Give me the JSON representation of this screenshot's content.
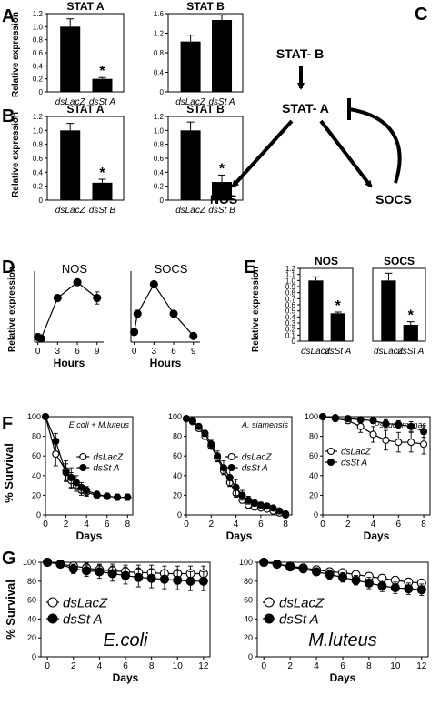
{
  "panel_letters": [
    "A",
    "B",
    "C",
    "D",
    "E",
    "F",
    "G"
  ],
  "asterisk": "*",
  "diagram_c": {
    "nodes": [
      "STAT- B",
      "STAT- A",
      "NOS",
      "SOCS"
    ]
  },
  "chart_data": [
    {
      "panel": "A",
      "type": "bar",
      "title": "STAT A",
      "ylabel": "Relative expression",
      "categories": [
        "dsLacZ",
        "dsSt A"
      ],
      "values": [
        1.0,
        0.2
      ],
      "errors": [
        0.12,
        0.02
      ],
      "significant": [
        false,
        true
      ],
      "ylim": [
        0,
        1.2
      ],
      "yticks": [
        "0",
        "0.2",
        "0.4",
        "0.6",
        "0.8",
        "1.0",
        "1.2"
      ]
    },
    {
      "panel": "A",
      "type": "bar",
      "title": "STAT B",
      "ylabel": "",
      "categories": [
        "dsLacZ",
        "dsSt A"
      ],
      "values": [
        1.03,
        1.47
      ],
      "errors": [
        0.13,
        0.1
      ],
      "significant": [
        false,
        false
      ],
      "ylim": [
        0,
        1.6
      ],
      "yticks": [
        "0",
        "0.4",
        "0.8",
        "1.2",
        "1.6"
      ]
    },
    {
      "panel": "B",
      "type": "bar",
      "title": "STAT A",
      "ylabel": "Relative expression",
      "categories": [
        "dsLacZ",
        "dsSt B"
      ],
      "values": [
        1.0,
        0.25
      ],
      "errors": [
        0.1,
        0.05
      ],
      "significant": [
        false,
        true
      ],
      "ylim": [
        0,
        1.2
      ],
      "yticks": [
        "0",
        "0.2",
        "0.4",
        "0.6",
        "0.8",
        "1.0",
        "1.2"
      ]
    },
    {
      "panel": "B",
      "type": "bar",
      "title": "STAT B",
      "ylabel": "",
      "categories": [
        "dsLacZ",
        "dsSt B"
      ],
      "values": [
        1.0,
        0.26
      ],
      "errors": [
        0.12,
        0.1
      ],
      "significant": [
        false,
        true
      ],
      "ylim": [
        0,
        1.2
      ],
      "yticks": [
        "0",
        "0.2",
        "0.4",
        "0.6",
        "0.8",
        "1.0",
        "1.2"
      ]
    },
    {
      "panel": "D",
      "type": "line",
      "title": "NOS",
      "ylabel": "Relative expression",
      "xlabel": "Hours",
      "x": [
        0,
        0.5,
        3,
        6,
        9
      ],
      "y": [
        1.0,
        0.7,
        8.7,
        11.8,
        8.7
      ],
      "errors": [
        0,
        0,
        0,
        0,
        1.2
      ],
      "xlim": [
        -0.5,
        10
      ],
      "ylim": [
        0,
        14
      ],
      "xticks": [
        0,
        3,
        6,
        9
      ],
      "yticks": []
    },
    {
      "panel": "D",
      "type": "line",
      "title": "SOCS",
      "ylabel": "",
      "xlabel": "Hours",
      "x": [
        0,
        0.5,
        3,
        6,
        9
      ],
      "y": [
        1.0,
        2.8,
        5.7,
        2.8,
        0.6
      ],
      "errors": [
        0,
        0,
        0,
        0,
        0
      ],
      "xlim": [
        -0.5,
        10
      ],
      "ylim": [
        0,
        7
      ],
      "xticks": [
        0,
        3,
        6,
        9
      ],
      "yticks": []
    },
    {
      "panel": "E",
      "type": "bar",
      "title": "NOS",
      "ylabel": "Relative expression",
      "categories": [
        "dsLacZ",
        "dsSt A"
      ],
      "values": [
        1.0,
        0.46
      ],
      "errors": [
        0.06,
        0.02
      ],
      "significant": [
        false,
        true
      ],
      "ylim": [
        0,
        1.2
      ],
      "yticks": [
        "0",
        "0.1",
        "0.2",
        "0.3",
        "0.4",
        "0.5",
        "0.6",
        "0.7",
        "0.8",
        "0.9",
        "1.0",
        "1.1",
        "1.2"
      ]
    },
    {
      "panel": "E",
      "type": "bar",
      "title": "SOCS",
      "ylabel": "",
      "categories": [
        "dsLacZ",
        "dsSt A"
      ],
      "values": [
        1.0,
        0.27
      ],
      "errors": [
        0.12,
        0.05
      ],
      "significant": [
        false,
        true
      ],
      "ylim": [
        0,
        1.2
      ],
      "yticks": []
    },
    {
      "panel": "F",
      "type": "line",
      "title": "E.coli + M.luteus",
      "ylabel": "% Survival",
      "xlabel": "Days",
      "xlim": [
        0,
        8.5
      ],
      "ylim": [
        0,
        100
      ],
      "xticks": [
        0,
        2,
        4,
        6,
        8
      ],
      "yticks": [
        0,
        20,
        40,
        60,
        80,
        100
      ],
      "legend": "upper-right",
      "series": [
        {
          "name": "dsLacZ",
          "marker": "open",
          "x": [
            0,
            1,
            2,
            2.5,
            3,
            3.5,
            4,
            5,
            6,
            7,
            8
          ],
          "y": [
            100,
            62,
            45,
            35,
            30,
            25,
            23,
            20,
            19,
            18,
            18
          ],
          "errors": [
            0,
            12,
            10,
            8,
            6,
            5,
            4,
            3,
            3,
            3,
            3
          ]
        },
        {
          "name": "dsSt A",
          "marker": "filled",
          "x": [
            0,
            1,
            2,
            2.5,
            3,
            3.5,
            4,
            5,
            6,
            7,
            8
          ],
          "y": [
            100,
            75,
            43,
            38,
            33,
            28,
            25,
            21,
            19,
            18,
            18
          ],
          "errors": [
            0,
            8,
            9,
            10,
            7,
            5,
            4,
            3,
            3,
            3,
            3
          ]
        }
      ]
    },
    {
      "panel": "F",
      "type": "line",
      "title": "A. siamensis",
      "ylabel": "",
      "xlabel": "Days",
      "xlim": [
        0,
        8.5
      ],
      "ylim": [
        0,
        100
      ],
      "xticks": [
        0,
        2,
        4,
        6,
        8
      ],
      "yticks": [
        0,
        20,
        40,
        60,
        80,
        100
      ],
      "legend": "upper-right",
      "series": [
        {
          "name": "dsLacZ",
          "marker": "open",
          "x": [
            0,
            0.5,
            1,
            1.5,
            2,
            2.5,
            3,
            3.5,
            4,
            4.5,
            5,
            5.5,
            6,
            6.5,
            7,
            7.5,
            8
          ],
          "y": [
            98,
            95,
            88,
            80,
            70,
            58,
            45,
            33,
            22,
            15,
            10,
            8,
            7,
            6,
            4,
            2,
            0
          ],
          "errors": [
            0,
            1,
            2,
            3,
            3,
            4,
            4,
            4,
            4,
            3,
            3,
            3,
            2,
            2,
            2,
            1,
            0
          ]
        },
        {
          "name": "dsSt A",
          "marker": "filled",
          "x": [
            0,
            0.5,
            1,
            1.5,
            2,
            2.5,
            3,
            3.5,
            4,
            4.5,
            5,
            5.5,
            6,
            6.5,
            7,
            7.5,
            8
          ],
          "y": [
            98,
            96,
            90,
            83,
            72,
            60,
            48,
            38,
            28,
            20,
            15,
            12,
            10,
            9,
            7,
            4,
            1
          ],
          "errors": [
            0,
            1,
            2,
            3,
            4,
            5,
            7,
            9,
            8,
            5,
            4,
            3,
            3,
            2,
            2,
            1,
            0
          ]
        }
      ]
    },
    {
      "panel": "F",
      "type": "line",
      "title": "Pseudomonas",
      "ylabel": "",
      "xlabel": "Days",
      "xlim": [
        0,
        8.5
      ],
      "ylim": [
        0,
        100
      ],
      "xticks": [
        0,
        2,
        4,
        6,
        8
      ],
      "yticks": [
        0,
        20,
        40,
        60,
        80,
        100
      ],
      "legend": "middle-left",
      "series": [
        {
          "name": "dsLacZ",
          "marker": "open",
          "x": [
            0,
            1,
            2,
            3,
            4,
            5,
            6,
            7,
            8
          ],
          "y": [
            100,
            98,
            96,
            90,
            82,
            76,
            74,
            74,
            72
          ],
          "errors": [
            0,
            2,
            3,
            6,
            8,
            10,
            10,
            10,
            10
          ]
        },
        {
          "name": "dsSt A",
          "marker": "filled",
          "x": [
            0,
            1,
            2,
            3,
            4,
            5,
            6,
            7,
            8
          ],
          "y": [
            100,
            99,
            98,
            97,
            96,
            93,
            92,
            90,
            85
          ],
          "errors": [
            0,
            1,
            2,
            3,
            3,
            4,
            4,
            5,
            6
          ]
        }
      ]
    },
    {
      "panel": "G",
      "type": "line",
      "title": "E.coli",
      "ylabel": "% Survival",
      "xlabel": "Days",
      "xlim": [
        -0.5,
        12.5
      ],
      "ylim": [
        0,
        100
      ],
      "xticks": [
        0,
        2,
        4,
        6,
        8,
        10,
        12
      ],
      "yticks": [
        0,
        20,
        40,
        60,
        80,
        100
      ],
      "legend": "middle-left",
      "series": [
        {
          "name": "dsLacZ",
          "marker": "open",
          "x": [
            0,
            1,
            2,
            3,
            4,
            5,
            6,
            7,
            8,
            9,
            10,
            11,
            12
          ],
          "y": [
            100,
            98,
            96,
            94,
            92,
            91,
            90,
            89,
            89,
            88,
            88,
            88,
            88
          ],
          "errors": [
            0,
            2,
            4,
            5,
            6,
            7,
            7,
            8,
            8,
            8,
            8,
            8,
            8
          ]
        },
        {
          "name": "dsSt A",
          "marker": "filled",
          "x": [
            0,
            1,
            2,
            3,
            4,
            5,
            6,
            7,
            8,
            9,
            10,
            11,
            12
          ],
          "y": [
            100,
            98,
            93,
            91,
            90,
            88,
            86,
            84,
            83,
            82,
            81,
            80,
            80
          ],
          "errors": [
            0,
            2,
            5,
            6,
            7,
            8,
            9,
            10,
            10,
            10,
            10,
            10,
            10
          ]
        }
      ]
    },
    {
      "panel": "G",
      "type": "line",
      "title": "M.luteus",
      "ylabel": "",
      "xlabel": "Days",
      "xlim": [
        -0.5,
        12.5
      ],
      "ylim": [
        0,
        100
      ],
      "xticks": [
        0,
        2,
        4,
        6,
        8,
        10,
        12
      ],
      "yticks": [
        0,
        20,
        40,
        60,
        80,
        100
      ],
      "legend": "middle-left",
      "series": [
        {
          "name": "dsLacZ",
          "marker": "open",
          "x": [
            0,
            1,
            2,
            3,
            4,
            5,
            6,
            7,
            8,
            9,
            10,
            11,
            12
          ],
          "y": [
            100,
            98,
            96,
            94,
            92,
            90,
            89,
            87,
            85,
            83,
            81,
            79,
            78
          ],
          "errors": [
            0,
            1,
            2,
            2,
            3,
            3,
            3,
            3,
            4,
            4,
            4,
            4,
            4
          ]
        },
        {
          "name": "dsSt A",
          "marker": "filled",
          "x": [
            0,
            1,
            2,
            3,
            4,
            5,
            6,
            7,
            8,
            9,
            10,
            11,
            12
          ],
          "y": [
            100,
            98,
            95,
            93,
            90,
            87,
            84,
            81,
            78,
            75,
            73,
            72,
            71
          ],
          "errors": [
            0,
            1,
            2,
            3,
            4,
            5,
            5,
            5,
            6,
            6,
            6,
            6,
            6
          ]
        }
      ]
    }
  ]
}
